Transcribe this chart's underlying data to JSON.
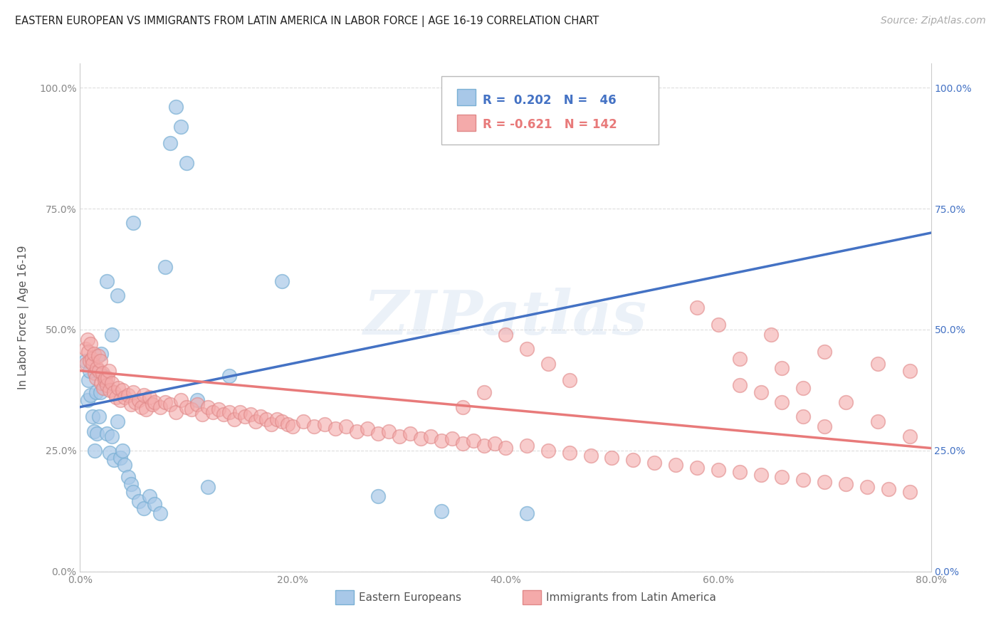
{
  "title": "EASTERN EUROPEAN VS IMMIGRANTS FROM LATIN AMERICA IN LABOR FORCE | AGE 16-19 CORRELATION CHART",
  "source": "Source: ZipAtlas.com",
  "ylabel": "In Labor Force | Age 16-19",
  "xmin": 0.0,
  "xmax": 0.8,
  "ymin": 0.0,
  "ymax": 1.05,
  "yticks": [
    0.0,
    0.25,
    0.5,
    0.75,
    1.0
  ],
  "ytick_labels": [
    "0.0%",
    "25.0%",
    "50.0%",
    "75.0%",
    "100.0%"
  ],
  "xticks": [
    0.0,
    0.2,
    0.4,
    0.6,
    0.8
  ],
  "xtick_labels": [
    "0.0%",
    "20.0%",
    "40.0%",
    "60.0%",
    "80.0%"
  ],
  "series1_color": "#a8c8e8",
  "series2_color": "#f4aaaa",
  "series1_label": "Eastern Europeans",
  "series2_label": "Immigrants from Latin America",
  "series1_R": "0.202",
  "series1_N": "46",
  "series2_R": "-0.621",
  "series2_N": "142",
  "series1_line_color": "#4472c4",
  "series2_line_color": "#e87a7a",
  "right_axis_color": "#4472c4",
  "watermark_text": "ZIPatlas",
  "background_color": "#ffffff",
  "grid_color": "#dddddd",
  "blue_line_x0": 0.0,
  "blue_line_y0": 0.34,
  "blue_line_x1": 0.8,
  "blue_line_y1": 0.7,
  "pink_line_x0": 0.0,
  "pink_line_y0": 0.415,
  "pink_line_x1": 0.8,
  "pink_line_y1": 0.255,
  "blue_points_x": [
    0.005,
    0.007,
    0.008,
    0.009,
    0.01,
    0.012,
    0.013,
    0.014,
    0.015,
    0.016,
    0.018,
    0.019,
    0.02,
    0.022,
    0.025,
    0.028,
    0.03,
    0.032,
    0.035,
    0.038,
    0.04,
    0.042,
    0.045,
    0.048,
    0.05,
    0.055,
    0.06,
    0.065,
    0.07,
    0.075,
    0.08,
    0.085,
    0.09,
    0.095,
    0.1,
    0.11,
    0.12,
    0.14,
    0.19,
    0.28,
    0.34,
    0.42,
    0.05,
    0.025,
    0.03,
    0.035
  ],
  "blue_points_y": [
    0.435,
    0.355,
    0.395,
    0.415,
    0.365,
    0.32,
    0.29,
    0.25,
    0.37,
    0.285,
    0.32,
    0.37,
    0.45,
    0.405,
    0.285,
    0.245,
    0.28,
    0.23,
    0.31,
    0.235,
    0.25,
    0.22,
    0.195,
    0.18,
    0.165,
    0.145,
    0.13,
    0.155,
    0.14,
    0.12,
    0.63,
    0.885,
    0.96,
    0.92,
    0.845,
    0.355,
    0.175,
    0.405,
    0.6,
    0.155,
    0.125,
    0.12,
    0.72,
    0.6,
    0.49,
    0.57
  ],
  "pink_points_x": [
    0.005,
    0.006,
    0.007,
    0.008,
    0.009,
    0.01,
    0.011,
    0.012,
    0.013,
    0.014,
    0.015,
    0.016,
    0.017,
    0.018,
    0.019,
    0.02,
    0.021,
    0.022,
    0.023,
    0.024,
    0.025,
    0.026,
    0.027,
    0.028,
    0.03,
    0.032,
    0.034,
    0.036,
    0.038,
    0.04,
    0.042,
    0.045,
    0.048,
    0.05,
    0.052,
    0.055,
    0.058,
    0.06,
    0.062,
    0.065,
    0.068,
    0.07,
    0.075,
    0.08,
    0.085,
    0.09,
    0.095,
    0.1,
    0.105,
    0.11,
    0.115,
    0.12,
    0.125,
    0.13,
    0.135,
    0.14,
    0.145,
    0.15,
    0.155,
    0.16,
    0.165,
    0.17,
    0.175,
    0.18,
    0.185,
    0.19,
    0.195,
    0.2,
    0.21,
    0.22,
    0.23,
    0.24,
    0.25,
    0.26,
    0.27,
    0.28,
    0.29,
    0.3,
    0.31,
    0.32,
    0.33,
    0.34,
    0.35,
    0.36,
    0.37,
    0.38,
    0.39,
    0.4,
    0.42,
    0.44,
    0.46,
    0.48,
    0.5,
    0.52,
    0.54,
    0.56,
    0.58,
    0.6,
    0.62,
    0.64,
    0.66,
    0.68,
    0.7,
    0.72,
    0.74,
    0.76,
    0.78,
    0.62,
    0.64,
    0.66,
    0.68,
    0.7,
    0.58,
    0.6,
    0.65,
    0.7,
    0.75,
    0.78,
    0.62,
    0.66,
    0.68,
    0.72,
    0.75,
    0.78,
    0.4,
    0.42,
    0.44,
    0.46,
    0.38,
    0.36
  ],
  "pink_points_y": [
    0.46,
    0.43,
    0.48,
    0.455,
    0.435,
    0.47,
    0.44,
    0.43,
    0.45,
    0.41,
    0.4,
    0.42,
    0.445,
    0.415,
    0.435,
    0.39,
    0.41,
    0.38,
    0.395,
    0.4,
    0.385,
    0.4,
    0.415,
    0.375,
    0.39,
    0.37,
    0.36,
    0.38,
    0.355,
    0.375,
    0.36,
    0.365,
    0.345,
    0.37,
    0.35,
    0.355,
    0.34,
    0.365,
    0.335,
    0.36,
    0.345,
    0.35,
    0.34,
    0.35,
    0.345,
    0.33,
    0.355,
    0.34,
    0.335,
    0.345,
    0.325,
    0.34,
    0.33,
    0.335,
    0.325,
    0.33,
    0.315,
    0.33,
    0.32,
    0.325,
    0.31,
    0.32,
    0.315,
    0.305,
    0.315,
    0.31,
    0.305,
    0.3,
    0.31,
    0.3,
    0.305,
    0.295,
    0.3,
    0.29,
    0.295,
    0.285,
    0.29,
    0.28,
    0.285,
    0.275,
    0.28,
    0.27,
    0.275,
    0.265,
    0.27,
    0.26,
    0.265,
    0.255,
    0.26,
    0.25,
    0.245,
    0.24,
    0.235,
    0.23,
    0.225,
    0.22,
    0.215,
    0.21,
    0.205,
    0.2,
    0.195,
    0.19,
    0.185,
    0.18,
    0.175,
    0.17,
    0.165,
    0.385,
    0.37,
    0.35,
    0.32,
    0.3,
    0.545,
    0.51,
    0.49,
    0.455,
    0.43,
    0.415,
    0.44,
    0.42,
    0.38,
    0.35,
    0.31,
    0.28,
    0.49,
    0.46,
    0.43,
    0.395,
    0.37,
    0.34
  ]
}
